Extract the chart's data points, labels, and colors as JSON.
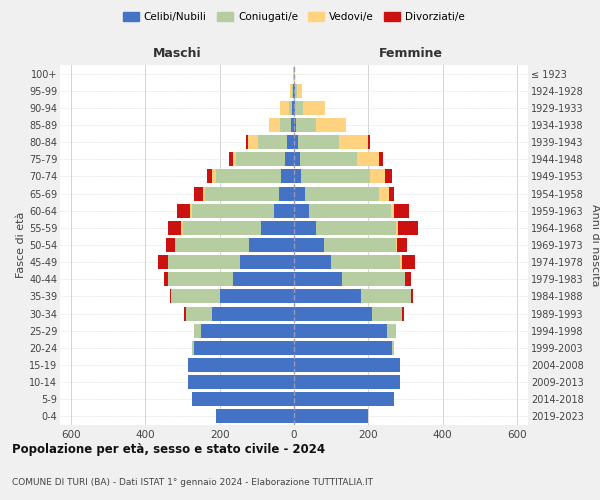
{
  "age_groups": [
    "0-4",
    "5-9",
    "10-14",
    "15-19",
    "20-24",
    "25-29",
    "30-34",
    "35-39",
    "40-44",
    "45-49",
    "50-54",
    "55-59",
    "60-64",
    "65-69",
    "70-74",
    "75-79",
    "80-84",
    "85-89",
    "90-94",
    "95-99",
    "100+"
  ],
  "birth_years": [
    "2019-2023",
    "2014-2018",
    "2009-2013",
    "2004-2008",
    "1999-2003",
    "1994-1998",
    "1989-1993",
    "1984-1988",
    "1979-1983",
    "1974-1978",
    "1969-1973",
    "1964-1968",
    "1959-1963",
    "1954-1958",
    "1949-1953",
    "1944-1948",
    "1939-1943",
    "1934-1938",
    "1929-1933",
    "1924-1928",
    "≤ 1923"
  ],
  "colors": {
    "celibe": "#4472c4",
    "coniugato": "#b5cda0",
    "vedovo": "#ffd280",
    "divorziato": "#cc1111"
  },
  "maschi": {
    "celibe": [
      210,
      275,
      285,
      285,
      270,
      250,
      220,
      200,
      165,
      145,
      120,
      90,
      55,
      40,
      35,
      25,
      18,
      8,
      5,
      3,
      1
    ],
    "coniugato": [
      0,
      0,
      0,
      0,
      5,
      20,
      70,
      130,
      175,
      195,
      200,
      210,
      220,
      200,
      175,
      130,
      80,
      30,
      8,
      3,
      0
    ],
    "vedovo": [
      0,
      0,
      0,
      0,
      0,
      0,
      0,
      0,
      0,
      0,
      0,
      3,
      5,
      5,
      10,
      10,
      25,
      30,
      25,
      5,
      1
    ],
    "divorziato": [
      0,
      0,
      0,
      0,
      0,
      0,
      5,
      5,
      10,
      25,
      25,
      35,
      35,
      25,
      15,
      10,
      5,
      0,
      0,
      0,
      0
    ]
  },
  "femmine": {
    "nubile": [
      200,
      270,
      285,
      285,
      265,
      250,
      210,
      180,
      130,
      100,
      80,
      60,
      40,
      30,
      20,
      15,
      10,
      5,
      3,
      2,
      1
    ],
    "coniugata": [
      0,
      0,
      0,
      0,
      5,
      25,
      80,
      135,
      170,
      185,
      195,
      215,
      220,
      200,
      185,
      155,
      110,
      55,
      20,
      5,
      0
    ],
    "vedova": [
      0,
      0,
      0,
      0,
      0,
      0,
      0,
      0,
      0,
      5,
      3,
      5,
      10,
      25,
      40,
      60,
      80,
      80,
      60,
      15,
      2
    ],
    "divorziata": [
      0,
      0,
      0,
      0,
      0,
      0,
      5,
      5,
      15,
      35,
      25,
      55,
      40,
      15,
      20,
      10,
      5,
      0,
      0,
      0,
      0
    ]
  },
  "xlim": 630,
  "title": "Popolazione per età, sesso e stato civile - 2024",
  "subtitle": "COMUNE DI TURI (BA) - Dati ISTAT 1° gennaio 2024 - Elaborazione TUTTITALIA.IT",
  "ylabel_left": "Fasce di età",
  "ylabel_right": "Anni di nascita",
  "xlabel_maschi": "Maschi",
  "xlabel_femmine": "Femmine",
  "bg_color": "#f0f0f0",
  "plot_bg": "#ffffff"
}
